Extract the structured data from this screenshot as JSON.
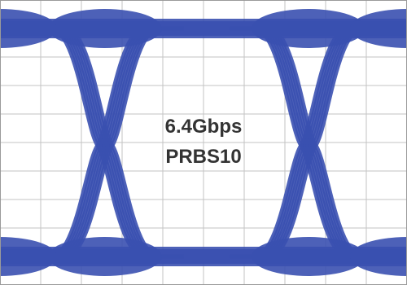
{
  "chart_data": {
    "type": "line",
    "title": "",
    "xlabel": "",
    "ylabel": "",
    "xlim": [
      0,
      1.94
    ],
    "ylim": [
      0,
      1
    ],
    "grid": true,
    "grid_divisions": {
      "x": 10,
      "y": 10
    },
    "bit_rate_label": "6.4Gbps",
    "pattern_label": "PRBS10",
    "crossing_points": [
      {
        "x": 0.5,
        "y": 0.49
      },
      {
        "x": 1.47,
        "y": 0.49
      }
    ],
    "levels": {
      "high": 0.9,
      "low": 0.1
    },
    "series": [
      {
        "values": []
      }
    ]
  },
  "colors": {
    "trace": "#3a50b0",
    "grid": "#c3c3c3",
    "background": "#ffffff",
    "label": "#333333"
  }
}
